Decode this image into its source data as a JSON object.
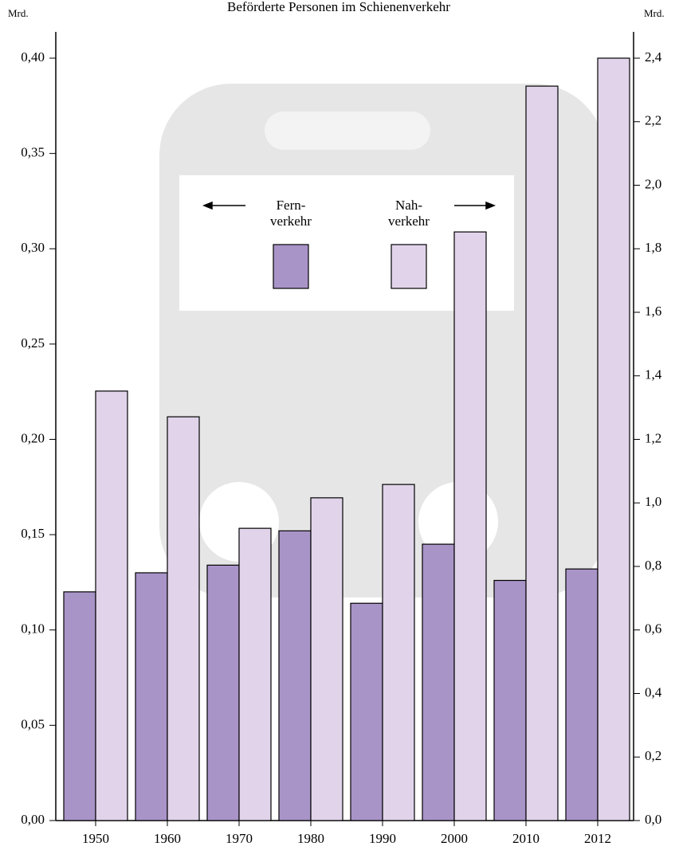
{
  "chart_data": {
    "type": "bar",
    "title": "Beförderte Personen im Schienenverkehr",
    "y_label": "Mrd.",
    "y2_label": "Mrd.",
    "categories": [
      "1950",
      "1960",
      "1970",
      "1980",
      "1990",
      "2000",
      "2010",
      "2012"
    ],
    "series": [
      {
        "name": "Fern-\nverkehr",
        "color": "#a994c8",
        "values": [
          0.12,
          0.13,
          0.134,
          0.152,
          0.114,
          0.145,
          0.126,
          0.132
        ]
      },
      {
        "name": "Nah-\nverkehr",
        "color": "#e1d4ea",
        "axis": "y2",
        "values": [
          1.352,
          1.271,
          0.92,
          1.016,
          1.058,
          1.853,
          2.312,
          2.4
        ]
      }
    ],
    "ylim": [
      0,
      0.4
    ],
    "yticks": [
      {
        "value": 0,
        "label": "0,00"
      },
      {
        "value": 0.05,
        "label": "0,05"
      },
      {
        "value": 0.1,
        "label": "0,10"
      },
      {
        "value": 0.15,
        "label": "0,15"
      },
      {
        "value": 0.2,
        "label": "0,20"
      },
      {
        "value": 0.25,
        "label": "0,25"
      },
      {
        "value": 0.3,
        "label": "0,30"
      },
      {
        "value": 0.35,
        "label": "0,35"
      },
      {
        "value": 0.4,
        "label": "0,40"
      }
    ],
    "y2lim": [
      0,
      2.4
    ],
    "y2ticks": [
      {
        "value": 0,
        "label": "0,0"
      },
      {
        "value": 0.2,
        "label": "0,2"
      },
      {
        "value": 0.4,
        "label": "0,4"
      },
      {
        "value": 0.6,
        "label": "0,6"
      },
      {
        "value": 0.8,
        "label": "0,8"
      },
      {
        "value": 1.0,
        "label": "1,0"
      },
      {
        "value": 1.2,
        "label": "1,2"
      },
      {
        "value": 1.4,
        "label": "1,4"
      },
      {
        "value": 1.6,
        "label": "1,6"
      },
      {
        "value": 1.8,
        "label": "1,8"
      },
      {
        "value": 2.0,
        "label": "2,0"
      },
      {
        "value": 2.2,
        "label": "2,2"
      },
      {
        "value": 2.4,
        "label": "2,4"
      }
    ]
  }
}
